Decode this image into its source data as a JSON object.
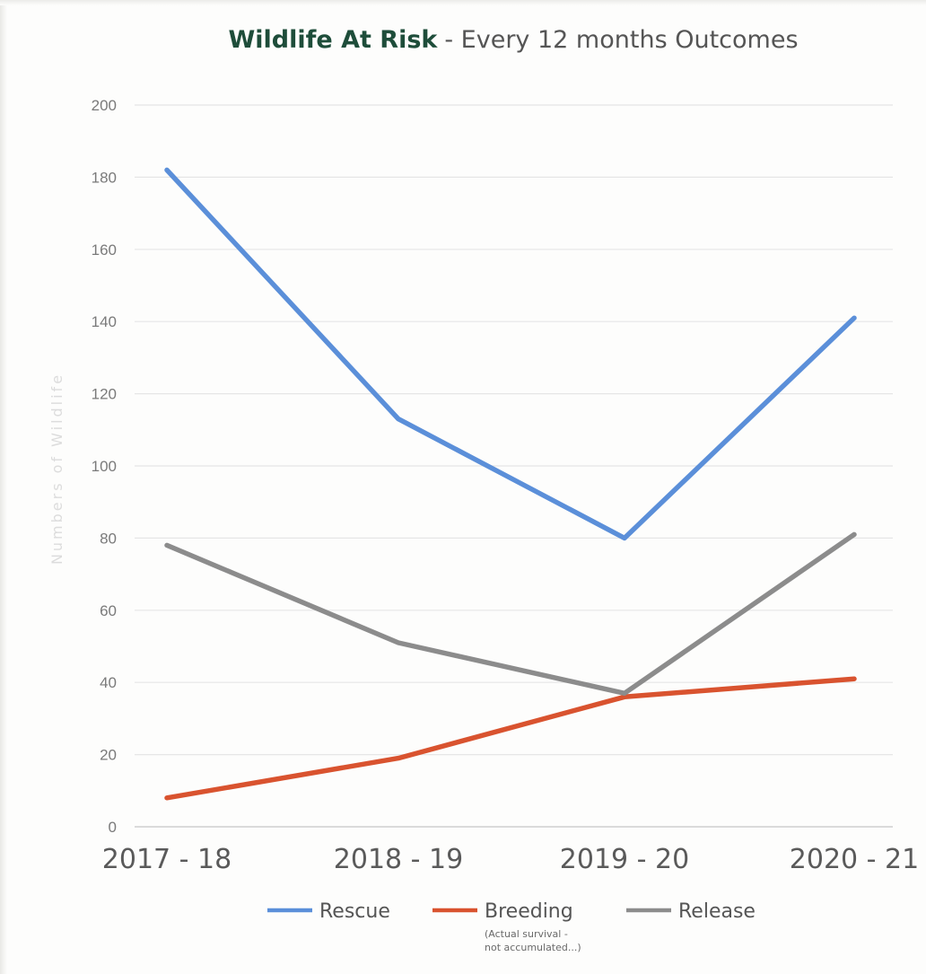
{
  "chart_data": {
    "type": "line",
    "title": "Wildlife At Risk",
    "subtitle": "- Every 12 months Outcomes",
    "title_color": "#1e4d3a",
    "xlabel": "",
    "ylabel": "Numbers of Wildlife",
    "categories": [
      "2017 - 18",
      "2018 - 19",
      "2019 - 20",
      "2020 - 21"
    ],
    "ylim": [
      0,
      200
    ],
    "yticks": [
      0,
      20,
      40,
      60,
      80,
      100,
      120,
      140,
      160,
      180,
      200
    ],
    "grid": true,
    "legend_position": "bottom",
    "series": [
      {
        "name": "Rescue",
        "color": "#5b8fd9",
        "values": [
          182,
          113,
          80,
          141
        ]
      },
      {
        "name": "Breeding",
        "color": "#d9532f",
        "values": [
          8,
          19,
          36,
          41
        ],
        "note": [
          "(Actual survival -",
          "not accumulated...)"
        ]
      },
      {
        "name": "Release",
        "color": "#8c8c8c",
        "values": [
          78,
          51,
          37,
          81
        ]
      }
    ]
  }
}
